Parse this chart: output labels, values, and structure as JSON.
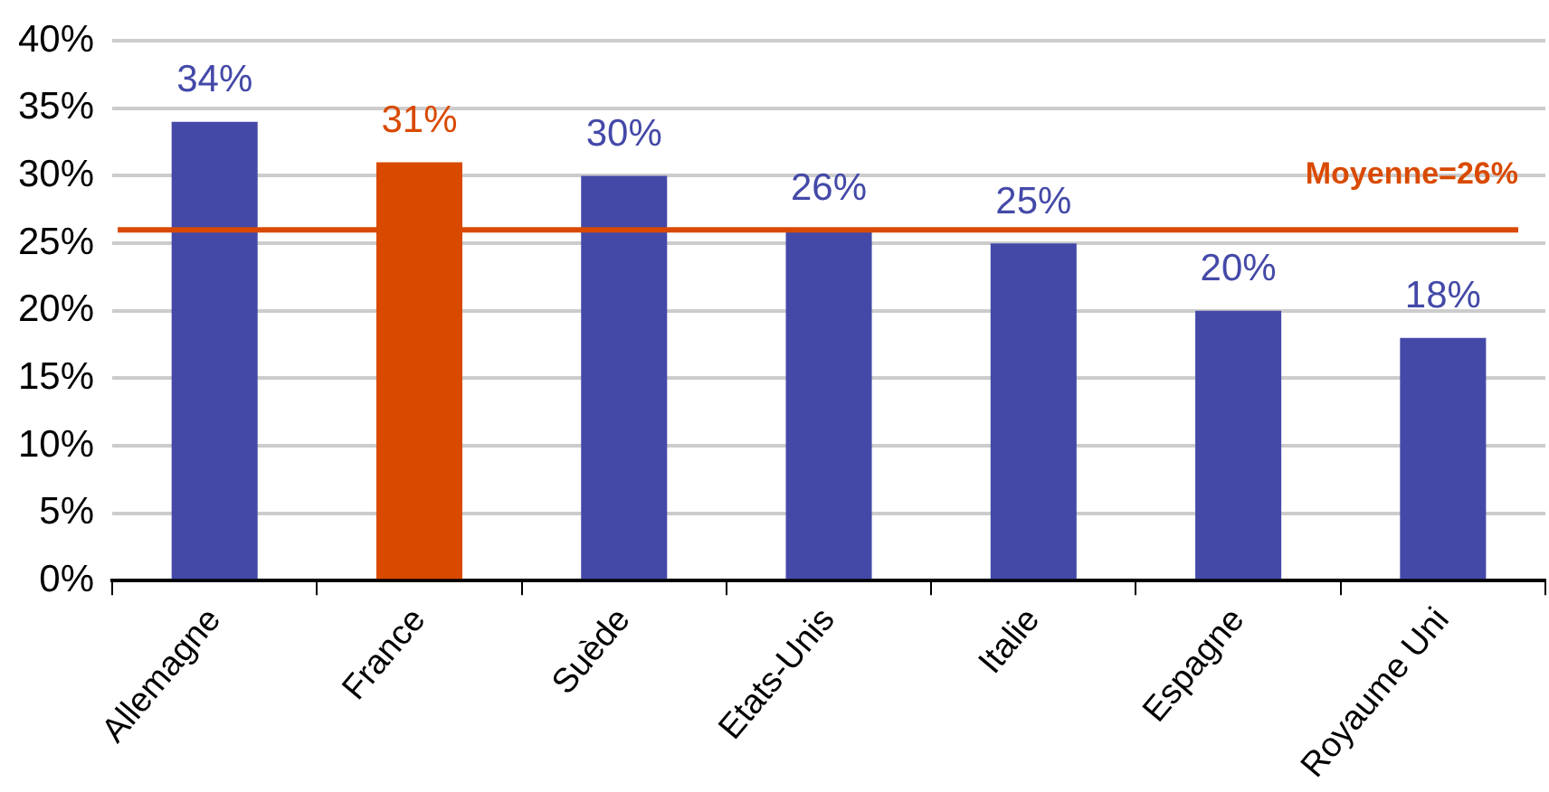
{
  "chart_data": {
    "type": "bar",
    "categories": [
      "Allemagne",
      "France",
      "Suède",
      "Etats-Unis",
      "Italie",
      "Espagne",
      "Royaume Uni"
    ],
    "values": [
      34,
      31,
      30,
      26,
      25,
      20,
      18
    ],
    "colors": [
      "#4449a8",
      "#d94a00",
      "#4449a8",
      "#4449a8",
      "#4449a8",
      "#4449a8",
      "#4449a8"
    ],
    "value_labels": [
      "34%",
      "31%",
      "30%",
      "26%",
      "25%",
      "20%",
      "18%"
    ],
    "ylim": [
      0,
      40
    ],
    "yticks": [
      {
        "value": 0,
        "label": "0%"
      },
      {
        "value": 5,
        "label": "5%"
      },
      {
        "value": 10,
        "label": "10%"
      },
      {
        "value": 15,
        "label": "15%"
      },
      {
        "value": 20,
        "label": "20%"
      },
      {
        "value": 25,
        "label": "25%"
      },
      {
        "value": 30,
        "label": "30%"
      },
      {
        "value": 35,
        "label": "35%"
      },
      {
        "value": 40,
        "label": "40%"
      }
    ],
    "grid": "y",
    "ref_lines": [
      {
        "axis": "y",
        "value": 26,
        "label": "Moyenne=26%",
        "color": "#d94a00"
      }
    ]
  }
}
